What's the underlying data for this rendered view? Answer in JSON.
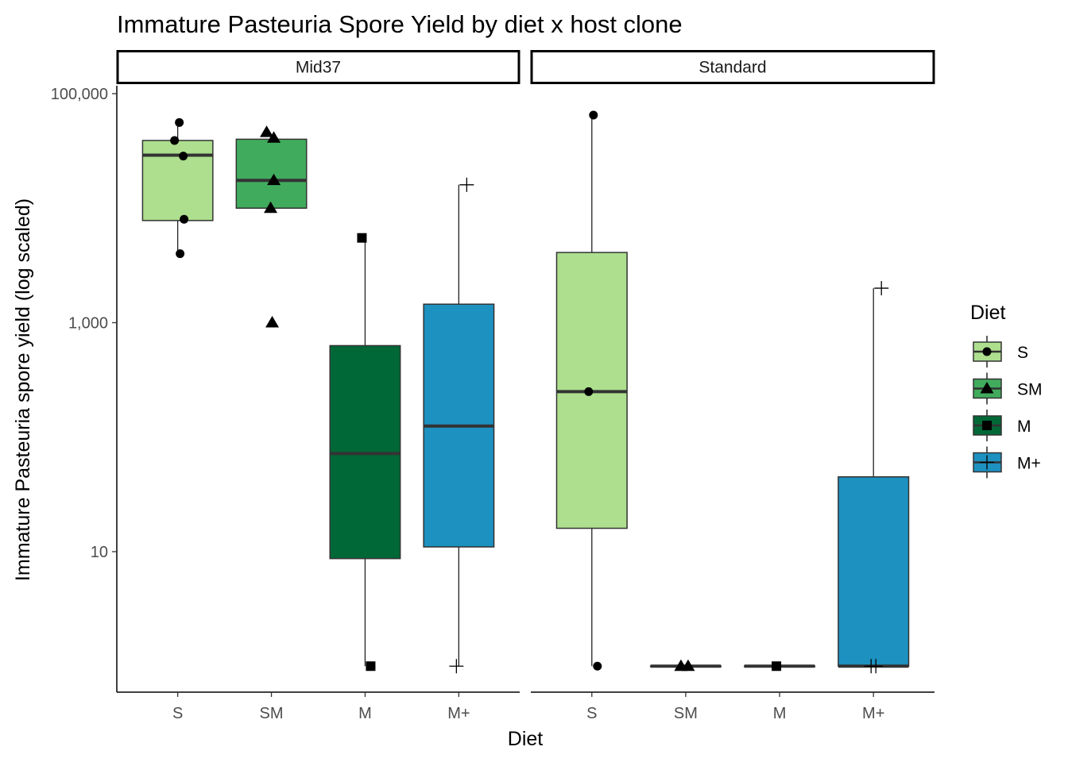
{
  "chart_data": {
    "type": "boxplot",
    "title": "Immature Pasteuria Spore Yield by diet x host clone",
    "xlabel": "Diet",
    "ylabel": "Immature Pasteuria spore yield (log scaled)",
    "y_scale": "log10",
    "ylim": [
      1,
      200000
    ],
    "y_ticks": [
      {
        "value": 10,
        "label": "10"
      },
      {
        "value": 1000,
        "label": "1,000"
      },
      {
        "value": 100000,
        "label": "100,000"
      }
    ],
    "categories": [
      "S",
      "SM",
      "M",
      "M+"
    ],
    "grid": false,
    "legend": {
      "title": "Diet",
      "position": "right",
      "items": [
        {
          "label": "S",
          "color": "#addf8e",
          "marker": "circle"
        },
        {
          "label": "SM",
          "color": "#41ab5d",
          "marker": "triangle"
        },
        {
          "label": "M",
          "color": "#006837",
          "marker": "square"
        },
        {
          "label": "M+",
          "color": "#1d91c0",
          "marker": "plus"
        }
      ]
    },
    "panels": [
      {
        "name": "Mid37",
        "boxes": [
          {
            "category": "S",
            "q1": 7800,
            "median": 29000,
            "q3": 39000,
            "whisker_low": 4000,
            "whisker_high": 56000
          },
          {
            "category": "SM",
            "q1": 10000,
            "median": 17500,
            "q3": 40000,
            "whisker_low": 10000,
            "whisker_high": 40000
          },
          {
            "category": "M",
            "q1": 8.7,
            "median": 72,
            "q3": 630,
            "whisker_low": 1,
            "whisker_high": 5500
          },
          {
            "category": "M+",
            "q1": 11,
            "median": 125,
            "q3": 1450,
            "whisker_low": 1,
            "whisker_high": 16000
          }
        ],
        "points": [
          {
            "category": "S",
            "values": [
              56000,
              39000,
              28500,
              8000,
              4000
            ]
          },
          {
            "category": "SM",
            "values": [
              46000,
              41000,
              17500,
              10000,
              1000
            ]
          },
          {
            "category": "M",
            "values": [
              5500,
              1
            ]
          },
          {
            "category": "M+",
            "values": [
              16000,
              1
            ]
          }
        ]
      },
      {
        "name": "Standard",
        "boxes": [
          {
            "category": "S",
            "q1": 16,
            "median": 250,
            "q3": 4100,
            "whisker_low": 1,
            "whisker_high": 65000
          },
          {
            "category": "SM",
            "q1": 1,
            "median": 1,
            "q3": 1,
            "whisker_low": 1,
            "whisker_high": 1
          },
          {
            "category": "M",
            "q1": 1,
            "median": 1,
            "q3": 1,
            "whisker_low": 1,
            "whisker_high": 1
          },
          {
            "category": "M+",
            "q1": 1,
            "median": 1,
            "q3": 45,
            "whisker_low": 1,
            "whisker_high": 2000
          }
        ],
        "points": [
          {
            "category": "S",
            "values": [
              65000,
              250,
              1
            ]
          },
          {
            "category": "SM",
            "values": [
              1,
              1
            ]
          },
          {
            "category": "M",
            "values": [
              1
            ]
          },
          {
            "category": "M+",
            "values": [
              2000,
              1,
              1
            ]
          }
        ]
      }
    ]
  }
}
